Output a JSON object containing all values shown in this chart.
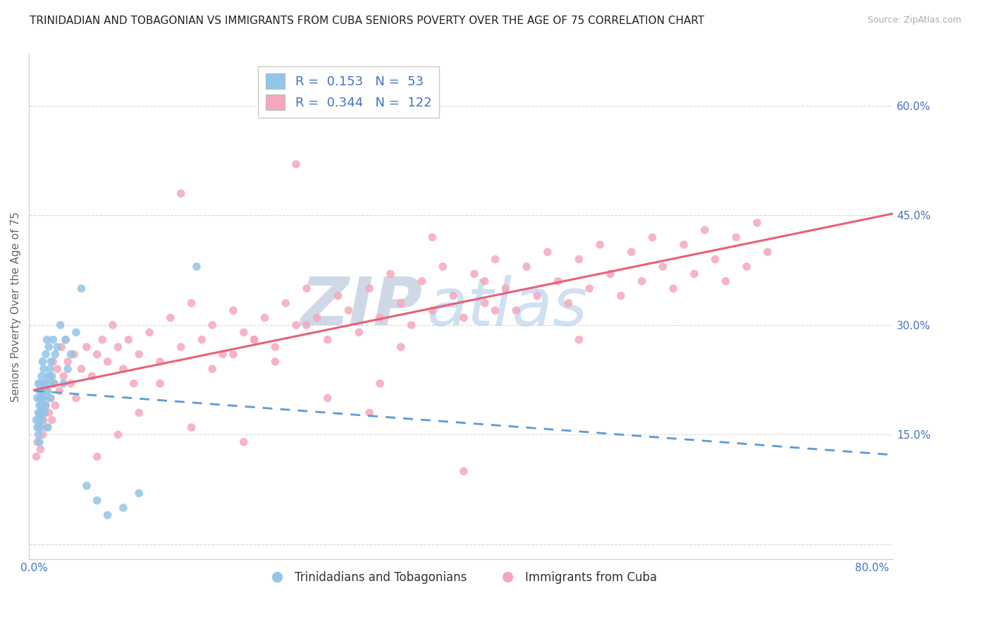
{
  "title": "TRINIDADIAN AND TOBAGONIAN VS IMMIGRANTS FROM CUBA SENIORS POVERTY OVER THE AGE OF 75 CORRELATION CHART",
  "source": "Source: ZipAtlas.com",
  "ylabel": "Seniors Poverty Over the Age of 75",
  "xlim": [
    -0.005,
    0.82
  ],
  "ylim": [
    -0.02,
    0.67
  ],
  "xticks": [
    0.0,
    0.8
  ],
  "xticklabels": [
    "0.0%",
    "80.0%"
  ],
  "ytick_right_vals": [
    0.15,
    0.3,
    0.45,
    0.6
  ],
  "ytick_right_labels": [
    "15.0%",
    "30.0%",
    "45.0%",
    "60.0%"
  ],
  "blue_R": 0.153,
  "blue_N": 53,
  "pink_R": 0.344,
  "pink_N": 122,
  "blue_color": "#92C5E8",
  "pink_color": "#F5A8BB",
  "trend_blue_color": "#5B9BD5",
  "trend_pink_color": "#E8607A",
  "blue_label": "Trinidadians and Tobagonians",
  "pink_label": "Immigrants from Cuba",
  "axis_color": "#4472C4",
  "watermark_zip": "ZIP",
  "watermark_atlas": "atlas",
  "background_color": "#ffffff",
  "grid_color": "#d8d8d8",
  "title_fontsize": 11,
  "source_fontsize": 9,
  "tick_fontsize": 11,
  "legend_fontsize": 13,
  "blue_x": [
    0.002,
    0.003,
    0.003,
    0.004,
    0.004,
    0.004,
    0.005,
    0.005,
    0.005,
    0.005,
    0.006,
    0.006,
    0.006,
    0.006,
    0.007,
    0.007,
    0.007,
    0.008,
    0.008,
    0.008,
    0.009,
    0.009,
    0.01,
    0.01,
    0.011,
    0.011,
    0.012,
    0.012,
    0.013,
    0.013,
    0.014,
    0.014,
    0.015,
    0.015,
    0.016,
    0.017,
    0.018,
    0.019,
    0.02,
    0.022,
    0.025,
    0.028,
    0.03,
    0.032,
    0.035,
    0.04,
    0.045,
    0.05,
    0.06,
    0.07,
    0.085,
    0.1,
    0.155
  ],
  "blue_y": [
    0.17,
    0.2,
    0.16,
    0.18,
    0.22,
    0.15,
    0.19,
    0.21,
    0.17,
    0.14,
    0.18,
    0.22,
    0.16,
    0.2,
    0.19,
    0.23,
    0.17,
    0.21,
    0.18,
    0.25,
    0.2,
    0.24,
    0.22,
    0.18,
    0.26,
    0.19,
    0.21,
    0.28,
    0.23,
    0.16,
    0.22,
    0.27,
    0.24,
    0.2,
    0.25,
    0.23,
    0.28,
    0.22,
    0.26,
    0.27,
    0.3,
    0.22,
    0.28,
    0.24,
    0.26,
    0.29,
    0.35,
    0.08,
    0.06,
    0.04,
    0.05,
    0.07,
    0.38
  ],
  "pink_x": [
    0.002,
    0.003,
    0.004,
    0.005,
    0.006,
    0.007,
    0.008,
    0.009,
    0.01,
    0.011,
    0.012,
    0.013,
    0.014,
    0.015,
    0.016,
    0.017,
    0.018,
    0.019,
    0.02,
    0.022,
    0.024,
    0.026,
    0.028,
    0.03,
    0.032,
    0.035,
    0.038,
    0.04,
    0.045,
    0.05,
    0.055,
    0.06,
    0.065,
    0.07,
    0.075,
    0.08,
    0.085,
    0.09,
    0.095,
    0.1,
    0.11,
    0.12,
    0.13,
    0.14,
    0.15,
    0.16,
    0.17,
    0.18,
    0.19,
    0.2,
    0.21,
    0.22,
    0.23,
    0.24,
    0.25,
    0.26,
    0.27,
    0.28,
    0.29,
    0.3,
    0.31,
    0.32,
    0.33,
    0.34,
    0.35,
    0.36,
    0.37,
    0.38,
    0.39,
    0.4,
    0.41,
    0.42,
    0.43,
    0.44,
    0.45,
    0.46,
    0.47,
    0.48,
    0.49,
    0.5,
    0.51,
    0.52,
    0.53,
    0.54,
    0.55,
    0.56,
    0.57,
    0.58,
    0.59,
    0.6,
    0.61,
    0.62,
    0.63,
    0.64,
    0.65,
    0.66,
    0.67,
    0.68,
    0.69,
    0.7,
    0.14,
    0.25,
    0.43,
    0.33,
    0.38,
    0.2,
    0.32,
    0.41,
    0.15,
    0.28,
    0.06,
    0.08,
    0.1,
    0.12,
    0.17,
    0.19,
    0.21,
    0.23,
    0.26,
    0.35,
    0.44,
    0.52
  ],
  "pink_y": [
    0.12,
    0.14,
    0.16,
    0.18,
    0.13,
    0.2,
    0.15,
    0.17,
    0.22,
    0.19,
    0.16,
    0.21,
    0.18,
    0.23,
    0.2,
    0.17,
    0.25,
    0.22,
    0.19,
    0.24,
    0.21,
    0.27,
    0.23,
    0.28,
    0.25,
    0.22,
    0.26,
    0.2,
    0.24,
    0.27,
    0.23,
    0.26,
    0.28,
    0.25,
    0.3,
    0.27,
    0.24,
    0.28,
    0.22,
    0.26,
    0.29,
    0.25,
    0.31,
    0.27,
    0.33,
    0.28,
    0.3,
    0.26,
    0.32,
    0.29,
    0.28,
    0.31,
    0.27,
    0.33,
    0.3,
    0.35,
    0.31,
    0.28,
    0.34,
    0.32,
    0.29,
    0.35,
    0.31,
    0.37,
    0.33,
    0.3,
    0.36,
    0.32,
    0.38,
    0.34,
    0.31,
    0.37,
    0.33,
    0.39,
    0.35,
    0.32,
    0.38,
    0.34,
    0.4,
    0.36,
    0.33,
    0.39,
    0.35,
    0.41,
    0.37,
    0.34,
    0.4,
    0.36,
    0.42,
    0.38,
    0.35,
    0.41,
    0.37,
    0.43,
    0.39,
    0.36,
    0.42,
    0.38,
    0.44,
    0.4,
    0.48,
    0.52,
    0.36,
    0.22,
    0.42,
    0.14,
    0.18,
    0.1,
    0.16,
    0.2,
    0.12,
    0.15,
    0.18,
    0.22,
    0.24,
    0.26,
    0.28,
    0.25,
    0.3,
    0.27,
    0.32,
    0.28
  ]
}
